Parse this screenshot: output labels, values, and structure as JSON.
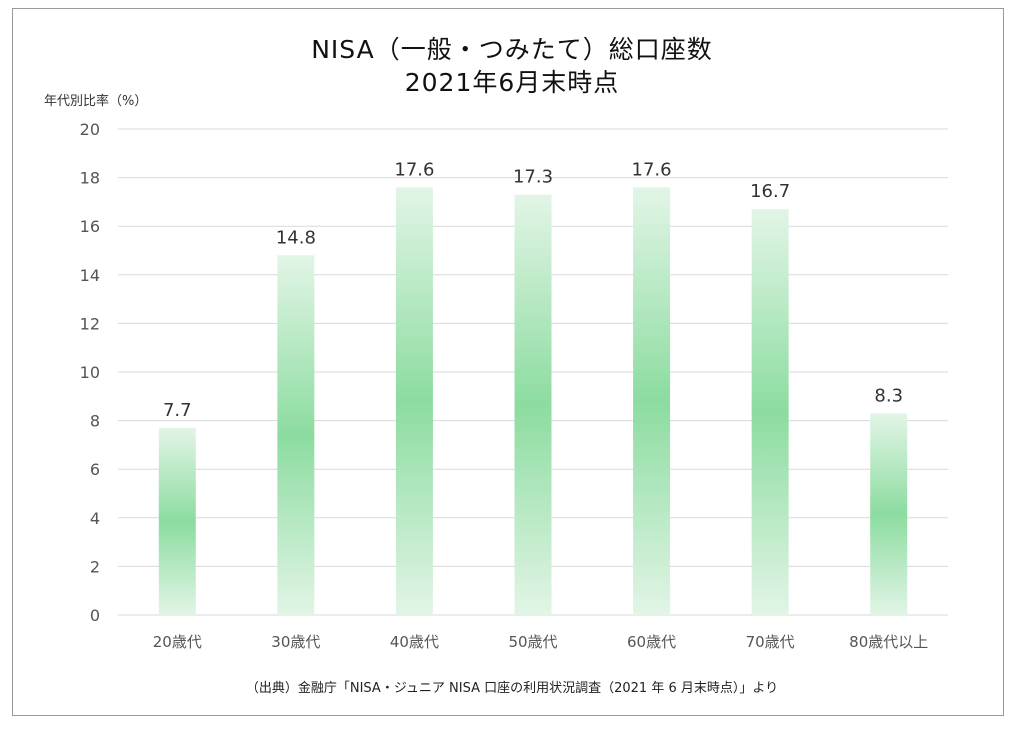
{
  "chart_data": {
    "type": "bar",
    "title": "NISA（一般・つみたて）総口座数",
    "subtitle": "2021年6月末時点",
    "ylabel": "年代別比率（%）",
    "categories": [
      "20歳代",
      "30歳代",
      "40歳代",
      "50歳代",
      "60歳代",
      "70歳代",
      "80歳代以上"
    ],
    "values": [
      7.7,
      14.8,
      17.6,
      17.3,
      17.6,
      16.7,
      8.3
    ],
    "data_labels": [
      "7.7",
      "14.8",
      "17.6",
      "17.3",
      "17.6",
      "16.7",
      "8.3"
    ],
    "ylim": [
      0,
      20
    ],
    "yticks": [
      "0",
      "2",
      "4",
      "6",
      "8",
      "10",
      "12",
      "14",
      "16",
      "18",
      "20"
    ],
    "grid": true,
    "legend": "none",
    "colors": {
      "bar_center": "#8cdca0",
      "bar_edge": "#e2f5e6",
      "grid": "#d9d9d9"
    }
  },
  "source_note": "（出典）金融庁「NISA・ジュニア NISA 口座の利用状況調査（2021 年 6 月末時点）」より"
}
